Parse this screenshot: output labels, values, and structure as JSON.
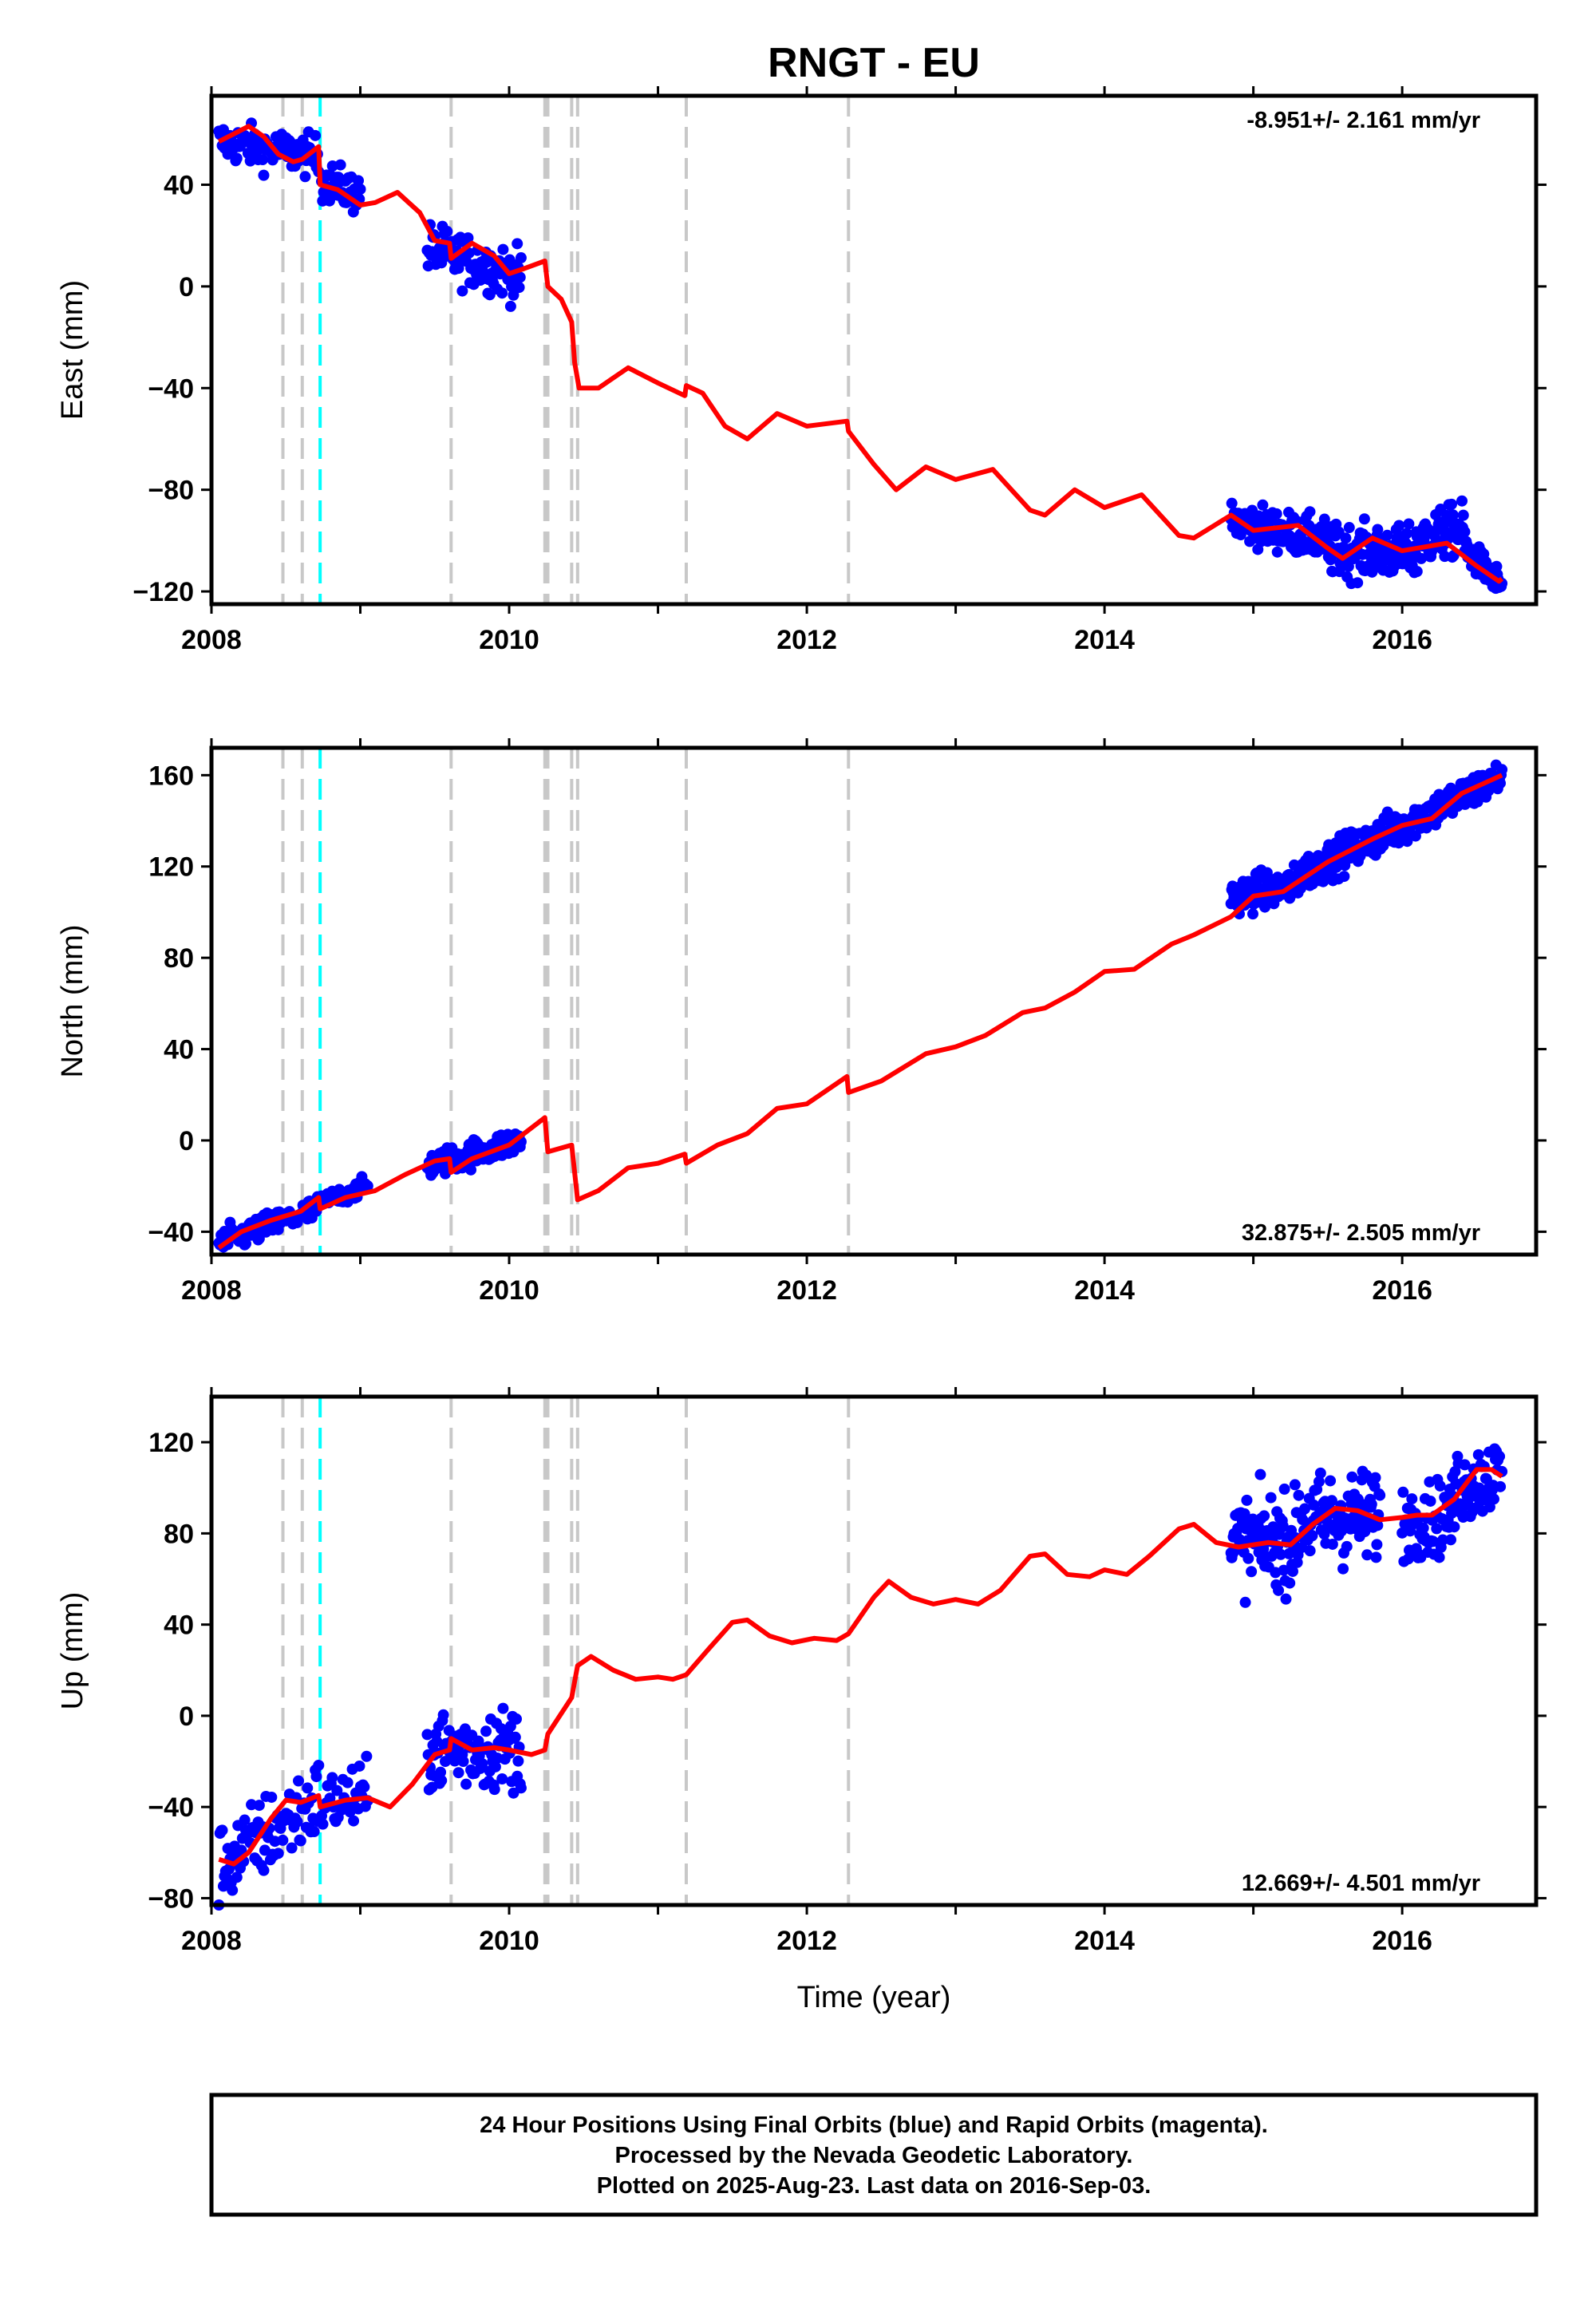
{
  "title": "RNGT - EU",
  "xlabel": "Time (year)",
  "xlim": [
    2008,
    2016.9
  ],
  "xticks": [
    2008,
    2010,
    2012,
    2014,
    2016
  ],
  "colors": {
    "final_points": "#0000ff",
    "model_line": "#ff0000",
    "equipment_change": "#c8c8c8",
    "earthquake": "#00ffff",
    "frame": "#000000"
  },
  "events": {
    "gray_lines": [
      2008.48,
      2008.61,
      2009.61,
      2010.24,
      2010.26,
      2010.42,
      2010.46,
      2011.19,
      2012.28
    ],
    "cyan_lines": [
      2008.73
    ]
  },
  "footer": {
    "line1": "24 Hour Positions Using Final Orbits (blue) and Rapid Orbits (magenta).",
    "line2": "Processed by the Nevada Geodetic Laboratory.",
    "line3": "Plotted on 2025-Aug-23. Last data on 2016-Sep-03."
  },
  "chart_data": [
    {
      "type": "scatter",
      "ylabel": "East (mm)",
      "ylim": [
        -125,
        75
      ],
      "yticks": [
        40,
        0,
        -40,
        -80,
        -120
      ],
      "ytick_labels": [
        "40",
        "0",
        "−40",
        "−80",
        "−120"
      ],
      "rate": "-8.951+/- 2.161 mm/yr",
      "rate_position": "top-right",
      "model_line": [
        [
          2008.05,
          57
        ],
        [
          2008.15,
          60
        ],
        [
          2008.25,
          63
        ],
        [
          2008.35,
          59
        ],
        [
          2008.45,
          52
        ],
        [
          2008.55,
          49
        ],
        [
          2008.61,
          50
        ],
        [
          2008.72,
          55
        ],
        [
          2008.73,
          40
        ],
        [
          2008.85,
          38
        ],
        [
          2009.0,
          32
        ],
        [
          2009.1,
          33
        ],
        [
          2009.25,
          37
        ],
        [
          2009.4,
          29
        ],
        [
          2009.5,
          18
        ],
        [
          2009.6,
          17
        ],
        [
          2009.61,
          11
        ],
        [
          2009.75,
          17
        ],
        [
          2009.9,
          12
        ],
        [
          2010.0,
          5
        ],
        [
          2010.1,
          7
        ],
        [
          2010.24,
          10
        ],
        [
          2010.26,
          0
        ],
        [
          2010.35,
          -5
        ],
        [
          2010.42,
          -14
        ],
        [
          2010.44,
          -30
        ],
        [
          2010.47,
          -40
        ],
        [
          2010.6,
          -40
        ],
        [
          2010.8,
          -32
        ],
        [
          2011.0,
          -38
        ],
        [
          2011.18,
          -43
        ],
        [
          2011.19,
          -39
        ],
        [
          2011.3,
          -42
        ],
        [
          2011.45,
          -55
        ],
        [
          2011.6,
          -60
        ],
        [
          2011.8,
          -50
        ],
        [
          2012.0,
          -55
        ],
        [
          2012.27,
          -53
        ],
        [
          2012.28,
          -57
        ],
        [
          2012.45,
          -70
        ],
        [
          2012.6,
          -80
        ],
        [
          2012.8,
          -71
        ],
        [
          2013.0,
          -76
        ],
        [
          2013.25,
          -72
        ],
        [
          2013.5,
          -88
        ],
        [
          2013.6,
          -90
        ],
        [
          2013.8,
          -80
        ],
        [
          2014.0,
          -87
        ],
        [
          2014.25,
          -82
        ],
        [
          2014.5,
          -98
        ],
        [
          2014.6,
          -99
        ],
        [
          2014.85,
          -90
        ],
        [
          2015.0,
          -96
        ],
        [
          2015.3,
          -94
        ],
        [
          2015.5,
          -103
        ],
        [
          2015.6,
          -107
        ],
        [
          2015.8,
          -99
        ],
        [
          2016.0,
          -104
        ],
        [
          2016.3,
          -101
        ],
        [
          2016.5,
          -110
        ],
        [
          2016.65,
          -116
        ],
        [
          2016.67,
          -115
        ]
      ],
      "point_spans": [
        {
          "x": [
            2008.05,
            2008.72
          ],
          "y": [
            57,
            51
          ],
          "scatter": 4,
          "n": 90
        },
        {
          "x": [
            2008.74,
            2009.0
          ],
          "y": [
            42,
            36
          ],
          "scatter": 4,
          "n": 40
        },
        {
          "x": [
            2009.45,
            2010.08
          ],
          "y": [
            15,
            4
          ],
          "scatter": 5,
          "n": 100
        },
        {
          "x": [
            2014.85,
            2015.5
          ],
          "y": [
            -92,
            -100
          ],
          "scatter": 4,
          "n": 120
        },
        {
          "x": [
            2015.5,
            2016.1
          ],
          "y": [
            -104,
            -105
          ],
          "scatter": 5,
          "n": 130
        },
        {
          "x": [
            2016.1,
            2016.42
          ],
          "y": [
            -100,
            -95
          ],
          "scatter": 5,
          "n": 70
        },
        {
          "x": [
            2016.42,
            2016.67
          ],
          "y": [
            -103,
            -118
          ],
          "scatter": 3,
          "n": 50
        }
      ]
    },
    {
      "type": "scatter",
      "ylabel": "North (mm)",
      "ylim": [
        -50,
        172
      ],
      "yticks": [
        160,
        120,
        80,
        40,
        0,
        -40
      ],
      "ytick_labels": [
        "160",
        "120",
        "80",
        "40",
        "0",
        "−40"
      ],
      "rate": "32.875+/- 2.505 mm/yr",
      "rate_position": "bottom-right",
      "model_line": [
        [
          2008.05,
          -47
        ],
        [
          2008.2,
          -40
        ],
        [
          2008.4,
          -35
        ],
        [
          2008.6,
          -31
        ],
        [
          2008.72,
          -25
        ],
        [
          2008.73,
          -30
        ],
        [
          2008.9,
          -25
        ],
        [
          2009.1,
          -22
        ],
        [
          2009.3,
          -15
        ],
        [
          2009.5,
          -9
        ],
        [
          2009.6,
          -8
        ],
        [
          2009.61,
          -14
        ],
        [
          2009.75,
          -8
        ],
        [
          2010.0,
          -2
        ],
        [
          2010.24,
          10
        ],
        [
          2010.26,
          -5
        ],
        [
          2010.42,
          -2
        ],
        [
          2010.46,
          -26
        ],
        [
          2010.6,
          -22
        ],
        [
          2010.8,
          -12
        ],
        [
          2011.0,
          -10
        ],
        [
          2011.18,
          -6
        ],
        [
          2011.19,
          -10
        ],
        [
          2011.4,
          -2
        ],
        [
          2011.6,
          3
        ],
        [
          2011.8,
          14
        ],
        [
          2012.0,
          16
        ],
        [
          2012.27,
          28
        ],
        [
          2012.28,
          21
        ],
        [
          2012.5,
          26
        ],
        [
          2012.8,
          38
        ],
        [
          2013.0,
          41
        ],
        [
          2013.2,
          46
        ],
        [
          2013.45,
          56
        ],
        [
          2013.6,
          58
        ],
        [
          2013.8,
          65
        ],
        [
          2014.0,
          74
        ],
        [
          2014.2,
          75
        ],
        [
          2014.45,
          86
        ],
        [
          2014.6,
          90
        ],
        [
          2014.85,
          98
        ],
        [
          2015.0,
          107
        ],
        [
          2015.2,
          109
        ],
        [
          2015.5,
          122
        ],
        [
          2015.8,
          132
        ],
        [
          2016.0,
          138
        ],
        [
          2016.2,
          141
        ],
        [
          2016.4,
          152
        ],
        [
          2016.67,
          160
        ]
      ],
      "point_spans": [
        {
          "x": [
            2008.05,
            2008.72
          ],
          "y": [
            -45,
            -30
          ],
          "scatter": 3,
          "n": 90
        },
        {
          "x": [
            2008.74,
            2009.05
          ],
          "y": [
            -27,
            -20
          ],
          "scatter": 2,
          "n": 40
        },
        {
          "x": [
            2009.45,
            2010.08
          ],
          "y": [
            -11,
            0
          ],
          "scatter": 3,
          "n": 100
        },
        {
          "x": [
            2014.85,
            2015.3
          ],
          "y": [
            107,
            112
          ],
          "scatter": 4,
          "n": 90
        },
        {
          "x": [
            2015.3,
            2016.0
          ],
          "y": [
            116,
            138
          ],
          "scatter": 4,
          "n": 150
        },
        {
          "x": [
            2016.0,
            2016.67
          ],
          "y": [
            138,
            159
          ],
          "scatter": 4,
          "n": 120
        }
      ]
    },
    {
      "type": "scatter",
      "ylabel": "Up (mm)",
      "ylim": [
        -83,
        140
      ],
      "yticks": [
        120,
        80,
        40,
        0,
        -40,
        -80
      ],
      "ytick_labels": [
        "120",
        "80",
        "40",
        "0",
        "−40",
        "−80"
      ],
      "rate": "12.669+/- 4.501 mm/yr",
      "rate_position": "bottom-right",
      "model_line": [
        [
          2008.05,
          -63
        ],
        [
          2008.15,
          -65
        ],
        [
          2008.25,
          -60
        ],
        [
          2008.4,
          -45
        ],
        [
          2008.5,
          -37
        ],
        [
          2008.6,
          -38
        ],
        [
          2008.72,
          -35
        ],
        [
          2008.73,
          -40
        ],
        [
          2008.9,
          -37
        ],
        [
          2009.05,
          -36
        ],
        [
          2009.2,
          -40
        ],
        [
          2009.35,
          -30
        ],
        [
          2009.5,
          -17
        ],
        [
          2009.6,
          -15
        ],
        [
          2009.61,
          -10
        ],
        [
          2009.75,
          -15
        ],
        [
          2009.9,
          -14
        ],
        [
          2010.0,
          -15
        ],
        [
          2010.15,
          -17
        ],
        [
          2010.24,
          -15
        ],
        [
          2010.26,
          -8
        ],
        [
          2010.42,
          8
        ],
        [
          2010.46,
          22
        ],
        [
          2010.55,
          26
        ],
        [
          2010.7,
          20
        ],
        [
          2010.85,
          16
        ],
        [
          2011.0,
          17
        ],
        [
          2011.1,
          16
        ],
        [
          2011.19,
          18
        ],
        [
          2011.35,
          30
        ],
        [
          2011.5,
          41
        ],
        [
          2011.6,
          42
        ],
        [
          2011.75,
          35
        ],
        [
          2011.9,
          32
        ],
        [
          2012.05,
          34
        ],
        [
          2012.2,
          33
        ],
        [
          2012.28,
          36
        ],
        [
          2012.45,
          52
        ],
        [
          2012.55,
          59
        ],
        [
          2012.7,
          52
        ],
        [
          2012.85,
          49
        ],
        [
          2013.0,
          51
        ],
        [
          2013.15,
          49
        ],
        [
          2013.3,
          55
        ],
        [
          2013.5,
          70
        ],
        [
          2013.6,
          71
        ],
        [
          2013.75,
          62
        ],
        [
          2013.9,
          61
        ],
        [
          2014.0,
          64
        ],
        [
          2014.15,
          62
        ],
        [
          2014.3,
          70
        ],
        [
          2014.5,
          82
        ],
        [
          2014.6,
          84
        ],
        [
          2014.75,
          76
        ],
        [
          2014.9,
          74
        ],
        [
          2015.1,
          76
        ],
        [
          2015.25,
          75
        ],
        [
          2015.4,
          84
        ],
        [
          2015.55,
          91
        ],
        [
          2015.7,
          90
        ],
        [
          2015.85,
          86
        ],
        [
          2016.0,
          87
        ],
        [
          2016.1,
          88
        ],
        [
          2016.2,
          88
        ],
        [
          2016.35,
          95
        ],
        [
          2016.5,
          108
        ],
        [
          2016.6,
          108
        ],
        [
          2016.67,
          105
        ]
      ],
      "point_spans": [
        {
          "x": [
            2008.05,
            2008.72
          ],
          "y": [
            -66,
            -37
          ],
          "scatter": 9,
          "n": 90
        },
        {
          "x": [
            2008.74,
            2009.05
          ],
          "y": [
            -38,
            -36
          ],
          "scatter": 7,
          "n": 40
        },
        {
          "x": [
            2009.45,
            2010.08
          ],
          "y": [
            -15,
            -14
          ],
          "scatter": 9,
          "n": 100
        },
        {
          "x": [
            2014.85,
            2015.3
          ],
          "y": [
            76,
            77
          ],
          "scatter": 10,
          "n": 90
        },
        {
          "x": [
            2015.3,
            2015.85
          ],
          "y": [
            85,
            88
          ],
          "scatter": 10,
          "n": 110
        },
        {
          "x": [
            2016.0,
            2016.35
          ],
          "y": [
            85,
            88
          ],
          "scatter": 8,
          "n": 60
        },
        {
          "x": [
            2016.35,
            2016.67
          ],
          "y": [
            100,
            106
          ],
          "scatter": 8,
          "n": 60
        }
      ]
    }
  ]
}
